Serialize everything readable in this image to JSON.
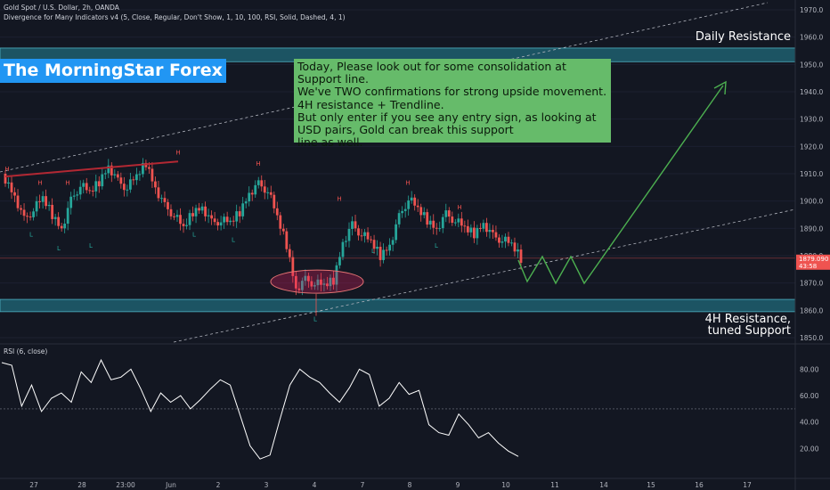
{
  "header": {
    "symbol_line": "Gold Spot / U.S. Dollar, 2h, OANDA",
    "indicator_line": "Divergence for Many Indicators v4 (5, Close, Regular, Don't Show, 1, 10, 100, RSI, Solid, Dashed, 4, 1)"
  },
  "brand": "The MorningStar Forex",
  "note_lines": [
    "Today, Please look out for some consolidation at",
    "Support line.",
    "We've TWO confirmations for strong upside movement.",
    "4H resistance + Trendline.",
    "But only enter if you see any entry sign, as looking at",
    "USD pairs, Gold can break this support",
    "line as well."
  ],
  "labels": {
    "daily_resistance": "Daily Resistance",
    "support_line1": "4H Resistance,",
    "support_line2": "tuned Support"
  },
  "price_tag": {
    "price": "1879.090",
    "countdown": "43:58"
  },
  "rsi_title": "RSI (6, close)",
  "colors": {
    "up": "#26a69a",
    "down": "#ef5350",
    "annotation": "#4caf50",
    "zone": "#1f5f6e",
    "brand": "#2196f3"
  },
  "chart_data": {
    "type": "candlestick",
    "price_axis": {
      "min": 1845,
      "max": 1975,
      "ticks": [
        1850,
        1860,
        1870,
        1880,
        1890,
        1900,
        1910,
        1920,
        1930,
        1940,
        1950,
        1960,
        1970
      ]
    },
    "x_tick_labels": [
      "27",
      "28",
      "23:00",
      "Jun",
      "2",
      "3",
      "4",
      "7",
      "8",
      "9",
      "10",
      "11",
      "14",
      "15",
      "16",
      "17"
    ],
    "zones": [
      {
        "name": "Daily Resistance",
        "low": 1951,
        "high": 1956
      },
      {
        "name": "4H Resistance, tuned Support",
        "low": 1859.5,
        "high": 1864
      }
    ],
    "current_price": 1879.09,
    "close_path": [
      1908,
      1902,
      1893,
      1897,
      1901,
      1895,
      1890,
      1900,
      1906,
      1903,
      1907,
      1913,
      1907,
      1905,
      1909,
      1914,
      1905,
      1898,
      1895,
      1890,
      1896,
      1898,
      1892,
      1893,
      1892,
      1896,
      1903,
      1906,
      1904,
      1894,
      1884,
      1868,
      1871,
      1870,
      1869,
      1871,
      1885,
      1891,
      1888,
      1885,
      1880,
      1884,
      1894,
      1901,
      1897,
      1893,
      1890,
      1895,
      1893,
      1890,
      1888,
      1892,
      1887,
      1886,
      1884,
      1879
    ],
    "rsi": {
      "range": [
        0,
        100
      ],
      "ticks": [
        20,
        40,
        60,
        80
      ],
      "values": [
        85,
        83,
        52,
        68,
        48,
        58,
        62,
        55,
        78,
        70,
        87,
        72,
        74,
        80,
        65,
        48,
        62,
        55,
        60,
        50,
        57,
        65,
        72,
        68,
        45,
        22,
        12,
        15,
        42,
        68,
        80,
        74,
        70,
        62,
        55,
        66,
        80,
        76,
        52,
        58,
        70,
        61,
        64,
        38,
        32,
        30,
        46,
        38,
        28,
        32,
        24,
        18,
        14
      ]
    }
  }
}
